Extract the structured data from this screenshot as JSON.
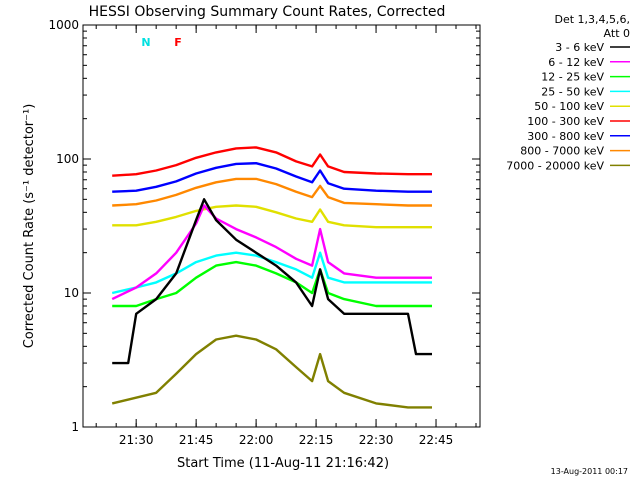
{
  "chart_data": {
    "type": "line",
    "title": "HESSI Observing Summary Count Rates, Corrected",
    "xlabel": "Start Time (11-Aug-11 21:16:42)",
    "ylabel": "Corrected Count Rate (s⁻¹ detector⁻¹)",
    "y_scale": "log",
    "ylim": [
      1,
      1000
    ],
    "xlim": [
      "21:16:42",
      "22:56"
    ],
    "x_ticks": [
      "21:30",
      "21:45",
      "22:00",
      "22:15",
      "22:30",
      "22:45"
    ],
    "y_ticks": [
      1,
      10,
      100,
      1000
    ],
    "y_tick_labels": [
      "1",
      "10",
      "100",
      "1000"
    ],
    "legend": {
      "placement": "right",
      "header1": "Det 1,3,4,5,6,",
      "header2": "Att 0"
    },
    "series": [
      {
        "name": "3 - 6 keV",
        "color": "#000000",
        "points": [
          [
            "21:24",
            3
          ],
          [
            "21:28",
            3
          ],
          [
            "21:30",
            7
          ],
          [
            "21:35",
            9
          ],
          [
            "21:40",
            14
          ],
          [
            "21:45",
            35
          ],
          [
            "21:47",
            50
          ],
          [
            "21:50",
            35
          ],
          [
            "21:55",
            25
          ],
          [
            "22:00",
            20
          ],
          [
            "22:05",
            16
          ],
          [
            "22:10",
            12
          ],
          [
            "22:14",
            8
          ],
          [
            "22:16",
            15
          ],
          [
            "22:18",
            9
          ],
          [
            "22:22",
            7
          ],
          [
            "22:30",
            7
          ],
          [
            "22:38",
            7
          ],
          [
            "22:40",
            3.5
          ],
          [
            "22:44",
            3.5
          ]
        ]
      },
      {
        "name": "6 - 12 keV",
        "color": "#ff00ff",
        "points": [
          [
            "21:24",
            9
          ],
          [
            "21:30",
            11
          ],
          [
            "21:35",
            14
          ],
          [
            "21:40",
            20
          ],
          [
            "21:45",
            33
          ],
          [
            "21:47",
            45
          ],
          [
            "21:50",
            36
          ],
          [
            "21:55",
            30
          ],
          [
            "22:00",
            26
          ],
          [
            "22:05",
            22
          ],
          [
            "22:10",
            18
          ],
          [
            "22:14",
            16
          ],
          [
            "22:16",
            30
          ],
          [
            "22:18",
            17
          ],
          [
            "22:22",
            14
          ],
          [
            "22:30",
            13
          ],
          [
            "22:38",
            13
          ],
          [
            "22:44",
            13
          ]
        ]
      },
      {
        "name": "12 - 25 keV",
        "color": "#00ff00",
        "points": [
          [
            "21:24",
            8
          ],
          [
            "21:30",
            8
          ],
          [
            "21:35",
            9
          ],
          [
            "21:40",
            10
          ],
          [
            "21:45",
            13
          ],
          [
            "21:50",
            16
          ],
          [
            "21:55",
            17
          ],
          [
            "22:00",
            16
          ],
          [
            "22:05",
            14
          ],
          [
            "22:10",
            12
          ],
          [
            "22:14",
            10
          ],
          [
            "22:16",
            15
          ],
          [
            "22:18",
            10
          ],
          [
            "22:22",
            9
          ],
          [
            "22:30",
            8
          ],
          [
            "22:38",
            8
          ],
          [
            "22:44",
            8
          ]
        ]
      },
      {
        "name": "25 - 50 keV",
        "color": "#00ffff",
        "points": [
          [
            "21:24",
            10
          ],
          [
            "21:30",
            11
          ],
          [
            "21:35",
            12
          ],
          [
            "21:40",
            14
          ],
          [
            "21:45",
            17
          ],
          [
            "21:50",
            19
          ],
          [
            "21:55",
            20
          ],
          [
            "22:00",
            19
          ],
          [
            "22:05",
            17
          ],
          [
            "22:10",
            15
          ],
          [
            "22:14",
            13
          ],
          [
            "22:16",
            20
          ],
          [
            "22:18",
            13
          ],
          [
            "22:22",
            12
          ],
          [
            "22:30",
            12
          ],
          [
            "22:38",
            12
          ],
          [
            "22:44",
            12
          ]
        ]
      },
      {
        "name": "50 - 100 keV",
        "color": "#e0e000",
        "points": [
          [
            "21:24",
            32
          ],
          [
            "21:30",
            32
          ],
          [
            "21:35",
            34
          ],
          [
            "21:40",
            37
          ],
          [
            "21:45",
            41
          ],
          [
            "21:50",
            44
          ],
          [
            "21:55",
            45
          ],
          [
            "22:00",
            44
          ],
          [
            "22:05",
            40
          ],
          [
            "22:10",
            36
          ],
          [
            "22:14",
            34
          ],
          [
            "22:16",
            42
          ],
          [
            "22:18",
            34
          ],
          [
            "22:22",
            32
          ],
          [
            "22:30",
            31
          ],
          [
            "22:38",
            31
          ],
          [
            "22:44",
            31
          ]
        ]
      },
      {
        "name": "100 - 300 keV",
        "color": "#ff0000",
        "points": [
          [
            "21:24",
            75
          ],
          [
            "21:30",
            77
          ],
          [
            "21:35",
            82
          ],
          [
            "21:40",
            90
          ],
          [
            "21:45",
            102
          ],
          [
            "21:50",
            112
          ],
          [
            "21:55",
            120
          ],
          [
            "22:00",
            122
          ],
          [
            "22:05",
            112
          ],
          [
            "22:10",
            96
          ],
          [
            "22:14",
            88
          ],
          [
            "22:16",
            108
          ],
          [
            "22:18",
            88
          ],
          [
            "22:22",
            80
          ],
          [
            "22:30",
            78
          ],
          [
            "22:38",
            77
          ],
          [
            "22:44",
            77
          ]
        ]
      },
      {
        "name": "300 - 800 keV",
        "color": "#0000ff",
        "points": [
          [
            "21:24",
            57
          ],
          [
            "21:30",
            58
          ],
          [
            "21:35",
            62
          ],
          [
            "21:40",
            68
          ],
          [
            "21:45",
            78
          ],
          [
            "21:50",
            86
          ],
          [
            "21:55",
            92
          ],
          [
            "22:00",
            93
          ],
          [
            "22:05",
            85
          ],
          [
            "22:10",
            74
          ],
          [
            "22:14",
            67
          ],
          [
            "22:16",
            82
          ],
          [
            "22:18",
            66
          ],
          [
            "22:22",
            60
          ],
          [
            "22:30",
            58
          ],
          [
            "22:38",
            57
          ],
          [
            "22:44",
            57
          ]
        ]
      },
      {
        "name": "800 - 7000 keV",
        "color": "#ff8800",
        "points": [
          [
            "21:24",
            45
          ],
          [
            "21:30",
            46
          ],
          [
            "21:35",
            49
          ],
          [
            "21:40",
            54
          ],
          [
            "21:45",
            61
          ],
          [
            "21:50",
            67
          ],
          [
            "21:55",
            71
          ],
          [
            "22:00",
            71
          ],
          [
            "22:05",
            65
          ],
          [
            "22:10",
            57
          ],
          [
            "22:14",
            52
          ],
          [
            "22:16",
            63
          ],
          [
            "22:18",
            52
          ],
          [
            "22:22",
            47
          ],
          [
            "22:30",
            46
          ],
          [
            "22:38",
            45
          ],
          [
            "22:44",
            45
          ]
        ]
      },
      {
        "name": "7000 - 20000 keV",
        "color": "#808000",
        "points": [
          [
            "21:24",
            1.5
          ],
          [
            "21:35",
            1.8
          ],
          [
            "21:40",
            2.5
          ],
          [
            "21:45",
            3.5
          ],
          [
            "21:50",
            4.5
          ],
          [
            "21:55",
            4.8
          ],
          [
            "22:00",
            4.5
          ],
          [
            "22:05",
            3.8
          ],
          [
            "22:10",
            2.8
          ],
          [
            "22:14",
            2.2
          ],
          [
            "22:16",
            3.5
          ],
          [
            "22:18",
            2.2
          ],
          [
            "22:22",
            1.8
          ],
          [
            "22:30",
            1.5
          ],
          [
            "22:38",
            1.4
          ],
          [
            "22:44",
            1.4
          ]
        ]
      }
    ],
    "annotations": [
      {
        "text": "N",
        "color": "#00e0e0"
      },
      {
        "text": "F",
        "color": "#ff0000"
      }
    ],
    "footer_date": "13-Aug-2011 00:17"
  }
}
